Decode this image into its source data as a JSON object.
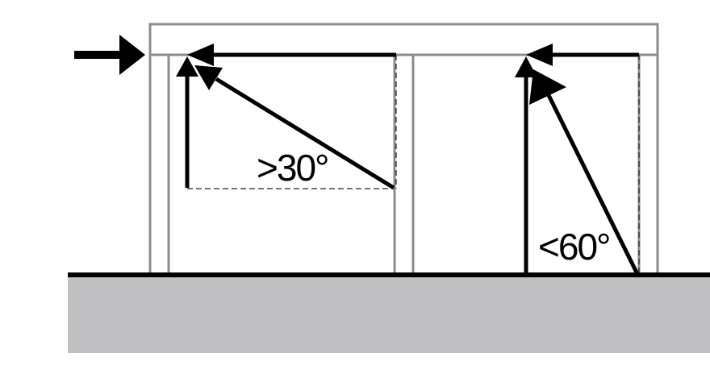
{
  "diagram": {
    "left_angle_label": ">30°",
    "right_angle_label": "<60°",
    "colors": {
      "frame": "#8c8c8c",
      "force_arrows": "#000000",
      "ground": "#c0c0c2"
    },
    "icons": {
      "load_arrow": "arrow-right-icon",
      "arrowheads": "arrowhead-icon"
    }
  }
}
